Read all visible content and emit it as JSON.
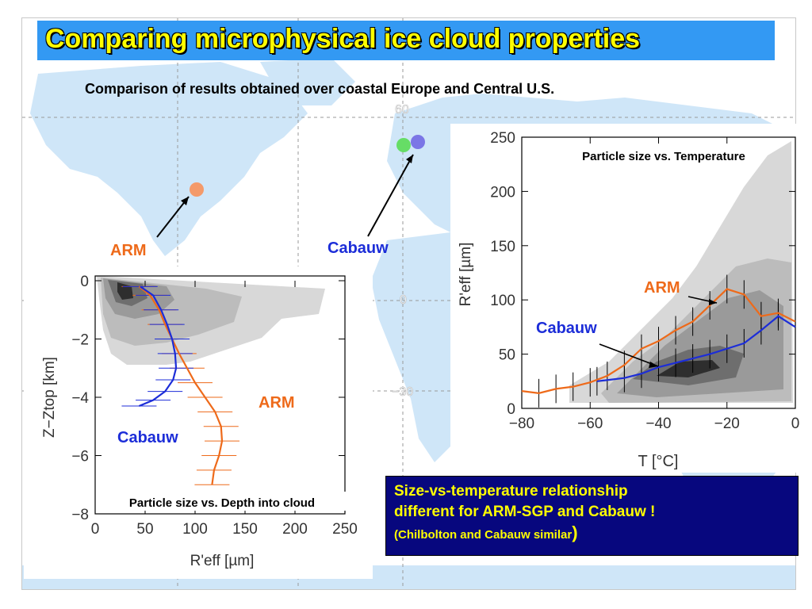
{
  "slide": {
    "title": "Comparing microphysical ice cloud properties",
    "subtitle": "Comparison of results obtained over coastal Europe and Central U.S.",
    "map": {
      "latitude_labels": [
        "60",
        "0",
        "−30"
      ],
      "sites": [
        {
          "name": "ARM",
          "color": "#f49a6a"
        },
        {
          "name": "Chilbolton",
          "color": "#66dd66"
        },
        {
          "name": "Cabauw",
          "color": "#7b76e6"
        }
      ],
      "arm_label": "ARM",
      "cabauw_label": "Cabauw"
    },
    "note": {
      "line1": "Size-vs-temperature relationship",
      "line2": "different for ARM-SGP and Cabauw !",
      "line3": "(Chilbolton and Cabauw similar",
      "line3_close": ")"
    },
    "colors": {
      "title_bar": "#3399f3",
      "title_text": "#ffff00",
      "arm": "#ee6a1a",
      "cabauw": "#1c2dd8",
      "note_bg": "#07077e"
    }
  },
  "chart_data": [
    {
      "type": "line",
      "title": "Particle size vs. Depth into cloud",
      "xlabel": "R'eff [µm]",
      "ylabel": "Z−Ztop [km]",
      "xlim": [
        0,
        250
      ],
      "ylim": [
        -8,
        0
      ],
      "xticks": [
        0,
        50,
        100,
        150,
        200,
        250
      ],
      "yticks": [
        0,
        -2,
        -4,
        -6,
        -8
      ],
      "series_labels": {
        "arm": "ARM",
        "cabauw": "Cabauw"
      },
      "series": [
        {
          "name": "ARM",
          "color": "#ee6a1a",
          "x": [
            44,
            55,
            64,
            70,
            77,
            84,
            92,
            100,
            110,
            120,
            126,
            127,
            124,
            119,
            117
          ],
          "y": [
            -0.2,
            -0.5,
            -1.0,
            -1.5,
            -2.0,
            -2.5,
            -3.0,
            -3.5,
            -4.0,
            -4.5,
            -5.0,
            -5.5,
            -6.0,
            -6.5,
            -7.0
          ]
        },
        {
          "name": "Cabauw",
          "color": "#1c2dd8",
          "x": [
            45,
            58,
            66,
            72,
            77,
            80,
            81,
            78,
            70,
            58,
            44
          ],
          "y": [
            -0.2,
            -0.5,
            -1.0,
            -1.5,
            -2.0,
            -2.5,
            -3.0,
            -3.4,
            -3.8,
            -4.1,
            -4.3
          ]
        }
      ]
    },
    {
      "type": "line",
      "title": "Particle size vs. Temperature",
      "xlabel": "T [°C]",
      "ylabel": "R'eff [µm]",
      "xlim": [
        -80,
        0
      ],
      "ylim": [
        0,
        250
      ],
      "xticks": [
        -80,
        -60,
        -40,
        -20,
        0
      ],
      "yticks": [
        0,
        50,
        100,
        150,
        200,
        250
      ],
      "series_labels": {
        "arm": "ARM",
        "cabauw": "Cabauw"
      },
      "series": [
        {
          "name": "ARM",
          "color": "#ee6a1a",
          "x": [
            -80,
            -75,
            -70,
            -65,
            -60,
            -55,
            -50,
            -45,
            -40,
            -35,
            -30,
            -25,
            -20,
            -15,
            -10,
            -5,
            0
          ],
          "y": [
            16,
            14,
            18,
            20,
            24,
            30,
            40,
            55,
            62,
            72,
            80,
            95,
            110,
            105,
            85,
            88,
            80
          ]
        },
        {
          "name": "Cabauw",
          "color": "#1c2dd8",
          "x": [
            -58,
            -50,
            -45,
            -40,
            -35,
            -30,
            -25,
            -20,
            -15,
            -10,
            -5,
            0
          ],
          "y": [
            25,
            28,
            32,
            38,
            42,
            46,
            50,
            55,
            60,
            72,
            85,
            75
          ]
        }
      ]
    }
  ]
}
